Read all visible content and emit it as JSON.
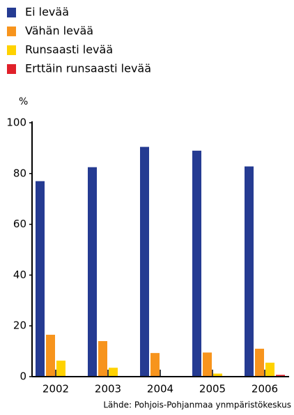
{
  "chart_data": {
    "type": "bar",
    "y_label": "%",
    "categories": [
      "2002",
      "2003",
      "2004",
      "2005",
      "2006"
    ],
    "series": [
      {
        "name": "Ei levää",
        "color": "#253b92",
        "values": [
          77,
          82.5,
          90.5,
          89,
          82.8
        ]
      },
      {
        "name": "Vähän levää",
        "color": "#f7941d",
        "values": [
          16.5,
          14,
          9.3,
          9.5,
          11
        ]
      },
      {
        "name": "Runsaasti levää",
        "color": "#ffd200",
        "values": [
          6.3,
          3.5,
          0,
          1.2,
          5.5
        ]
      },
      {
        "name": "Erttäin runsaasti levää",
        "color": "#e0202a",
        "values": [
          0,
          0,
          0,
          0,
          0.7
        ]
      }
    ],
    "ylim": [
      0,
      100
    ],
    "yticks": [
      0,
      20,
      40,
      60,
      80,
      100
    ],
    "legend": "top-left",
    "source": "Lähde: Pohjois-Pohjanmaa ynmpäristökeskus"
  }
}
